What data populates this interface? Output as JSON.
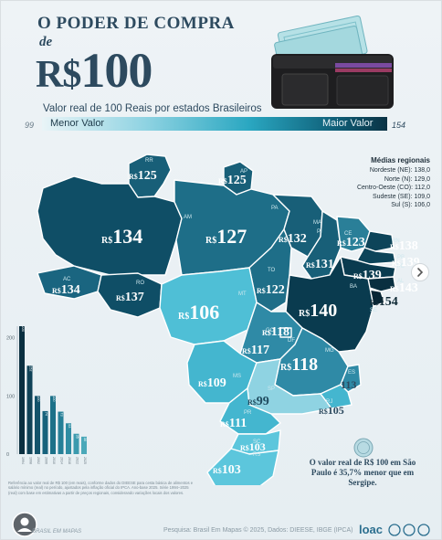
{
  "title": {
    "line1": "O PODER DE COMPRA",
    "line2": "de",
    "currency": "R$",
    "amount": "100"
  },
  "subtitle": "Valor real de 100 Reais por estados Brasileiros",
  "scale": {
    "min_value": "99",
    "min_label": "Menor Valor",
    "max_label": "Maior Valor",
    "max_value": "154"
  },
  "regional": {
    "header": "Médias regionais",
    "rows": [
      "Nordeste (NE): 138,0",
      "Norte (N): 129,0",
      "Centro-Oeste (CO): 112,0",
      "Sudeste (SE): 109,0",
      "Sul (S): 106,0"
    ]
  },
  "currency_prefix": "R$",
  "states": {
    "RR": {
      "code": "RR",
      "value": "125"
    },
    "AP": {
      "code": "AP",
      "value": "125"
    },
    "AM": {
      "code": "AM",
      "value": "134"
    },
    "PA": {
      "code": "PA",
      "value": "127"
    },
    "MA": {
      "code": "MA",
      "value": "132"
    },
    "PI": {
      "code": "PI",
      "value": "131"
    },
    "CE": {
      "code": "CE",
      "value": "123"
    },
    "RN": {
      "code": "RN",
      "value": "138"
    },
    "PB": {
      "code": "PB",
      "value": "139"
    },
    "PE": {
      "code": "PE",
      "value": "139"
    },
    "AL": {
      "code": "AL",
      "value": "143"
    },
    "SE": {
      "code": "SE",
      "value": "154"
    },
    "BA": {
      "code": "BA",
      "value": "140"
    },
    "AC": {
      "code": "AC",
      "value": "134"
    },
    "RO": {
      "code": "RO",
      "value": "137"
    },
    "TO": {
      "code": "TO",
      "value": "122"
    },
    "MT": {
      "code": "MT",
      "value": "106"
    },
    "GO": {
      "code": "GO",
      "value": "117"
    },
    "DF": {
      "code": "DF",
      "value": "118"
    },
    "MS": {
      "code": "MS",
      "value": "109"
    },
    "MG": {
      "code": "MG",
      "value": "118"
    },
    "ES": {
      "code": "ES",
      "value": "113"
    },
    "RJ": {
      "code": "RJ",
      "value": "105"
    },
    "SP": {
      "code": "SP",
      "value": "99"
    },
    "PR": {
      "code": "PR",
      "value": "111"
    },
    "SC": {
      "code": "SC",
      "value": "103"
    },
    "RS": {
      "code": "RS",
      "value": "103"
    }
  },
  "history_chart": {
    "y_ticks": [
      "200",
      "100",
      "0"
    ],
    "bars": [
      {
        "year": "1994",
        "value": 220,
        "label": "220"
      },
      {
        "year": "1998",
        "value": 152,
        "label": "152"
      },
      {
        "year": "2002",
        "value": 100,
        "label": "100"
      },
      {
        "year": "2006",
        "value": 74,
        "label": "74"
      },
      {
        "year": "2010",
        "value": 100,
        "label": "100"
      },
      {
        "year": "2014",
        "value": 73,
        "label": "73"
      },
      {
        "year": "2018",
        "value": 53,
        "label": "53"
      },
      {
        "year": "2022",
        "value": 35,
        "label": "35"
      },
      {
        "year": "2025",
        "value": 30,
        "label": "30"
      }
    ]
  },
  "colors": {
    "scale_darkest": "#0a3244",
    "scale_dark": "#185f78",
    "scale_mid": "#2aa7c1",
    "scale_light": "#8fd3e2",
    "text_primary": "#2d4a5f"
  },
  "note": "O valor real de R$ 100 em São Paulo é 35,7% menor que em Sergipe.",
  "fineprint": "Referência ao valor real de R$ 100 (em reais), conforme dados do DIEESE para cesta básica de alimentos e salário mínimo (real) no período, ajustados pela inflação oficial do IPCA. Ano-base 2025. Série 1994–2025 (real) com base em estimativas a partir de preços regionais, considerando variações locais dos valores.",
  "footer": {
    "brand": "BRASIL EM MAPAS",
    "source": "Pesquisa: Brasil Em Mapas © 2025, Dados: DIEESE, IBGE (IPCA)",
    "logo": "loac"
  },
  "icons": {
    "wallet": "wallet-icon",
    "coin": "coin-icon",
    "avatar": "avatar-icon",
    "next": "chevron-right-icon"
  }
}
